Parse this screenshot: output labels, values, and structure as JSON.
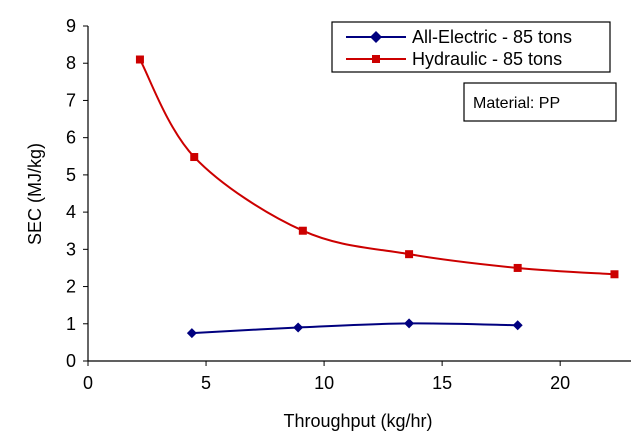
{
  "chart_data": {
    "type": "line",
    "xlabel": "Throughput (kg/hr)",
    "ylabel": "SEC (MJ/kg)",
    "xlim": [
      0,
      23
    ],
    "ylim": [
      0,
      9
    ],
    "xticks": [
      0,
      5,
      10,
      15,
      20
    ],
    "yticks": [
      0,
      1,
      2,
      3,
      4,
      5,
      6,
      7,
      8,
      9
    ],
    "grid": false,
    "legend_position": "top-right",
    "series": [
      {
        "name": "All-Electric - 85 tons",
        "color": "#00007f",
        "marker": "diamond",
        "points": [
          {
            "x": 4.4,
            "y": 0.75
          },
          {
            "x": 8.9,
            "y": 0.9
          },
          {
            "x": 13.6,
            "y": 1.01
          },
          {
            "x": 18.2,
            "y": 0.96
          }
        ]
      },
      {
        "name": "Hydraulic - 85 tons",
        "color": "#cc0000",
        "marker": "square",
        "points": [
          {
            "x": 2.2,
            "y": 8.1
          },
          {
            "x": 4.5,
            "y": 5.48
          },
          {
            "x": 9.1,
            "y": 3.5
          },
          {
            "x": 13.6,
            "y": 2.87
          },
          {
            "x": 18.2,
            "y": 2.5
          },
          {
            "x": 22.3,
            "y": 2.33
          }
        ]
      }
    ],
    "annotation": "Material: PP"
  }
}
